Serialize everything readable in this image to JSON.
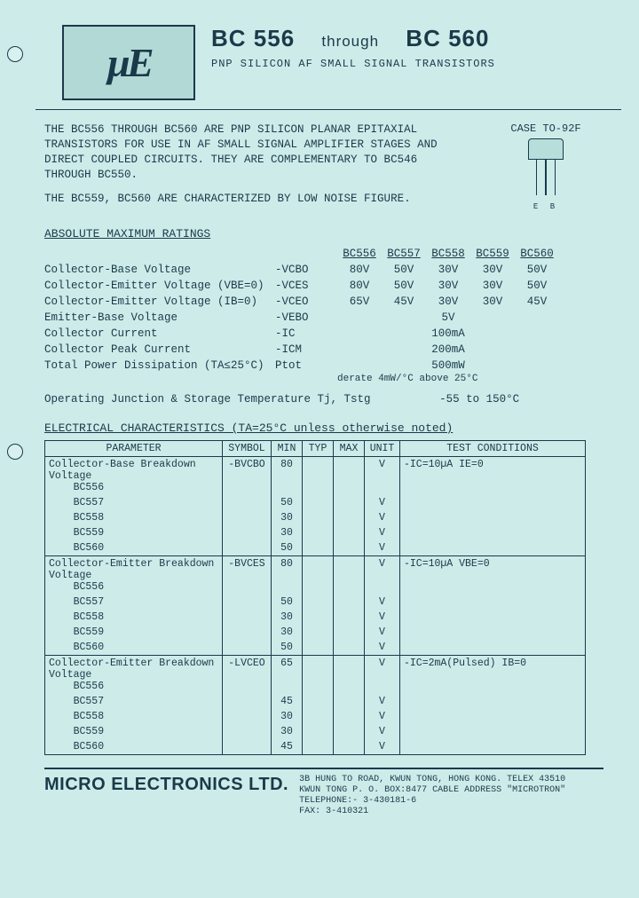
{
  "logo": "µE",
  "title": {
    "left": "BC 556",
    "mid": "through",
    "right": "BC 560"
  },
  "subtitle": "PNP SILICON AF SMALL SIGNAL TRANSISTORS",
  "case": {
    "label": "CASE TO-92F",
    "pins": "E B"
  },
  "intro": {
    "p1": "THE BC556 THROUGH BC560 ARE PNP SILICON PLANAR EPITAXIAL TRANSISTORS FOR USE IN AF SMALL SIGNAL AMPLIFIER STAGES AND DIRECT COUPLED CIRCUITS. THEY ARE COMPLEMENTARY TO BC546 THROUGH BC550.",
    "p2": "THE BC559, BC560 ARE CHARACTERIZED BY LOW NOISE FIGURE."
  },
  "ratings": {
    "title": "ABSOLUTE MAXIMUM RATINGS",
    "cols": [
      "BC556",
      "BC557",
      "BC558",
      "BC559",
      "BC560"
    ],
    "rows": [
      {
        "label": "Collector-Base Voltage",
        "sym": "-VCBO",
        "v": [
          "80V",
          "50V",
          "30V",
          "30V",
          "50V"
        ]
      },
      {
        "label": "Collector-Emitter Voltage (VBE=0)",
        "sym": "-VCES",
        "v": [
          "80V",
          "50V",
          "30V",
          "30V",
          "50V"
        ]
      },
      {
        "label": "Collector-Emitter Voltage (IB=0)",
        "sym": "-VCEO",
        "v": [
          "65V",
          "45V",
          "30V",
          "30V",
          "45V"
        ]
      },
      {
        "label": "Emitter-Base Voltage",
        "sym": "-VEBO",
        "span": "5V"
      },
      {
        "label": "Collector Current",
        "sym": "-IC",
        "span": "100mA"
      },
      {
        "label": "Collector Peak Current",
        "sym": "-ICM",
        "span": "200mA"
      },
      {
        "label": "Total Power Dissipation (TA≤25°C)",
        "sym": "Ptot",
        "span": "500mW"
      }
    ],
    "derate": "derate 4mW/°C above 25°C",
    "optemp_label": "Operating Junction & Storage Temperature Tj, Tstg",
    "optemp_val": "-55 to 150°C"
  },
  "elec": {
    "title": "ELECTRICAL CHARACTERISTICS   (TA=25°C unless otherwise noted)",
    "headers": [
      "PARAMETER",
      "SYMBOL",
      "MIN",
      "TYP",
      "MAX",
      "UNIT",
      "TEST CONDITIONS"
    ],
    "groups": [
      {
        "name": "Collector-Base Breakdown Voltage",
        "sym": "-BVCBO",
        "cond": "-IC=10µA   IE=0",
        "rows": [
          [
            "BC556",
            "80",
            "",
            "",
            "V"
          ],
          [
            "BC557",
            "50",
            "",
            "",
            "V"
          ],
          [
            "BC558",
            "30",
            "",
            "",
            "V"
          ],
          [
            "BC559",
            "30",
            "",
            "",
            "V"
          ],
          [
            "BC560",
            "50",
            "",
            "",
            "V"
          ]
        ]
      },
      {
        "name": "Collector-Emitter Breakdown Voltage",
        "sym": "-BVCES",
        "cond": "-IC=10µA  VBE=0",
        "rows": [
          [
            "BC556",
            "80",
            "",
            "",
            "V"
          ],
          [
            "BC557",
            "50",
            "",
            "",
            "V"
          ],
          [
            "BC558",
            "30",
            "",
            "",
            "V"
          ],
          [
            "BC559",
            "30",
            "",
            "",
            "V"
          ],
          [
            "BC560",
            "50",
            "",
            "",
            "V"
          ]
        ]
      },
      {
        "name": "Collector-Emitter Breakdown Voltage",
        "sym": "-LVCEO",
        "cond": "-IC=2mA(Pulsed) IB=0",
        "rows": [
          [
            "BC556",
            "65",
            "",
            "",
            "V"
          ],
          [
            "BC557",
            "45",
            "",
            "",
            "V"
          ],
          [
            "BC558",
            "30",
            "",
            "",
            "V"
          ],
          [
            "BC559",
            "30",
            "",
            "",
            "V"
          ],
          [
            "BC560",
            "45",
            "",
            "",
            "V"
          ]
        ]
      }
    ]
  },
  "footer": {
    "company": "MICRO ELECTRONICS LTD.",
    "addr1": "3B HUNG TO ROAD, KWUN TONG, HONG KONG.   TELEX 43510",
    "addr2": "KWUN TONG P. O. BOX:8477 CABLE ADDRESS \"MICROTRON\"",
    "addr3": "TELEPHONE:-  3-430181-6",
    "fax": "FAX: 3-410321"
  },
  "colors": {
    "bg": "#cdebe9",
    "ink": "#1a3a4a"
  }
}
